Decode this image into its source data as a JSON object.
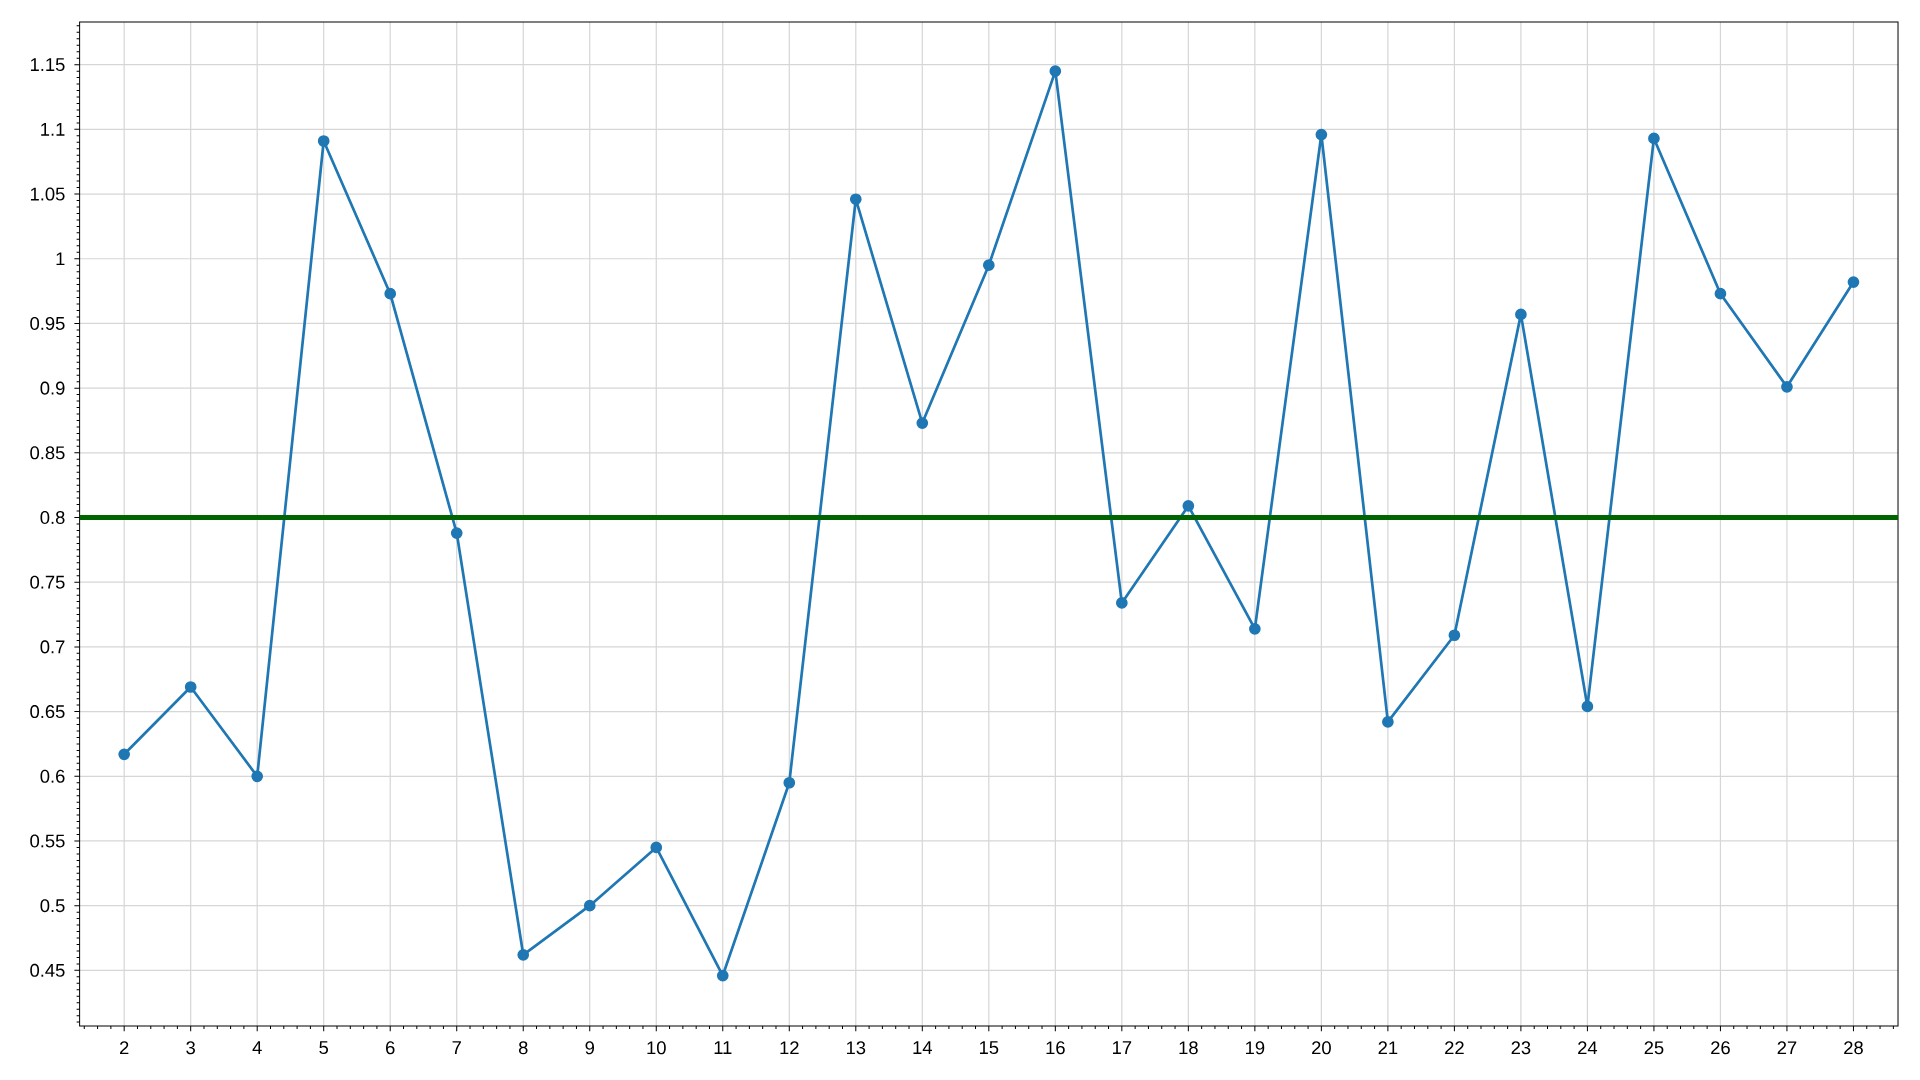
{
  "chart_data": {
    "type": "line",
    "x": [
      2,
      3,
      4,
      5,
      6,
      7,
      8,
      9,
      10,
      11,
      12,
      13,
      14,
      15,
      16,
      17,
      18,
      19,
      20,
      21,
      22,
      23,
      24,
      25,
      26,
      27,
      28
    ],
    "series": [
      {
        "color": "#1f77b4",
        "values": [
          0.617,
          0.669,
          0.6,
          1.091,
          0.973,
          0.788,
          0.462,
          0.5,
          0.545,
          0.446,
          0.595,
          1.046,
          0.873,
          0.995,
          1.145,
          0.734,
          0.809,
          0.714,
          1.096,
          0.642,
          0.709,
          0.957,
          0.654,
          1.093,
          0.973,
          0.901,
          0.982
        ]
      }
    ],
    "xlim": [
      1.33,
      28.67
    ],
    "ylim": [
      0.407,
      1.183
    ],
    "xticks": [
      2,
      3,
      4,
      5,
      6,
      7,
      8,
      9,
      10,
      11,
      12,
      13,
      14,
      15,
      16,
      17,
      18,
      19,
      20,
      21,
      22,
      23,
      24,
      25,
      26,
      27,
      28
    ],
    "yticks": [
      0.45,
      0.5,
      0.55,
      0.6,
      0.65,
      0.7,
      0.75,
      0.8,
      0.85,
      0.9,
      0.95,
      1,
      1.05,
      1.1,
      1.15
    ],
    "ref_lines": [
      {
        "axis": "y",
        "value": 0.8,
        "color": "#006400"
      }
    ],
    "grid": true,
    "marker": "circle",
    "line_style": "solid"
  }
}
